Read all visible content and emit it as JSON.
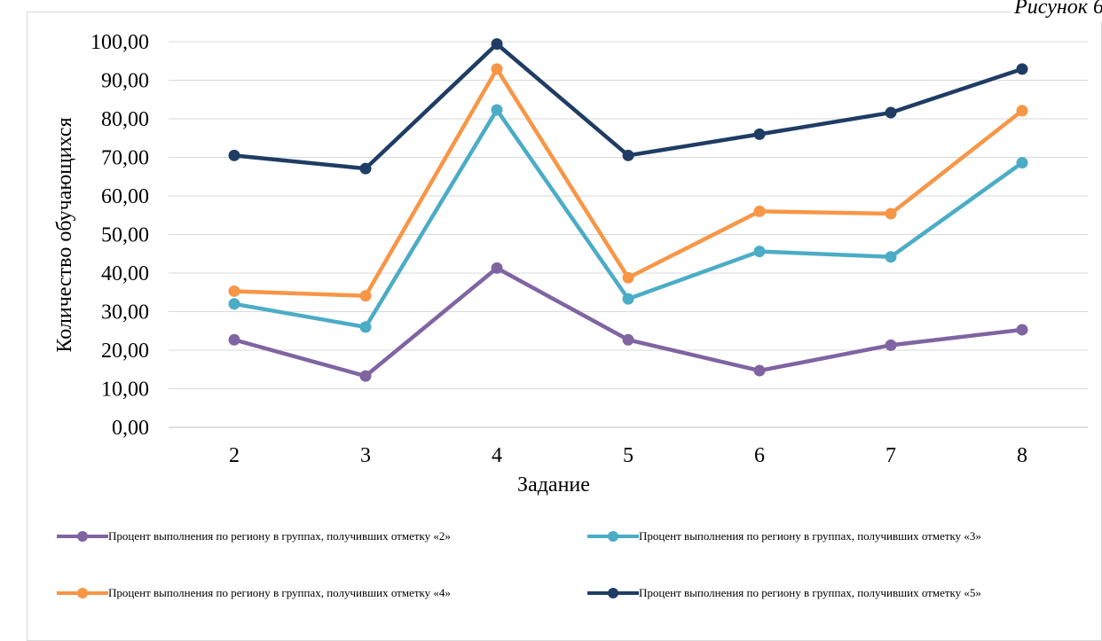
{
  "caption": "Рисунок 6",
  "chart_data": {
    "type": "line",
    "xlabel": "Задание",
    "ylabel": "Количество обучающихся",
    "categories": [
      "2",
      "3",
      "4",
      "5",
      "6",
      "7",
      "8"
    ],
    "yticks": [
      "0,00",
      "10,00",
      "20,00",
      "30,00",
      "40,00",
      "50,00",
      "60,00",
      "70,00",
      "80,00",
      "90,00",
      "100,00"
    ],
    "ylim": [
      0,
      100
    ],
    "grid": true,
    "legend_position": "bottom",
    "series": [
      {
        "name": "Процент выполнения по региону в группах, получивших отметку «2»",
        "color": "#8064a2",
        "values": [
          22.7,
          13.3,
          41.3,
          22.7,
          14.7,
          21.3,
          25.3
        ]
      },
      {
        "name": "Процент выполнения по региону в группах, получивших отметку «3»",
        "color": "#4bacc6",
        "values": [
          32.0,
          26.0,
          82.3,
          33.3,
          45.6,
          44.2,
          68.6
        ]
      },
      {
        "name": "Процент выполнения по региону в группах, получивших отметку «4»",
        "color": "#f79646",
        "values": [
          35.3,
          34.1,
          92.9,
          38.8,
          56.0,
          55.4,
          82.1
        ]
      },
      {
        "name": "Процент выполнения по региону в группах, получивших отметку «5»",
        "color": "#1f3d64",
        "values": [
          70.5,
          67.1,
          99.4,
          70.5,
          76.0,
          81.6,
          92.9
        ]
      }
    ]
  }
}
